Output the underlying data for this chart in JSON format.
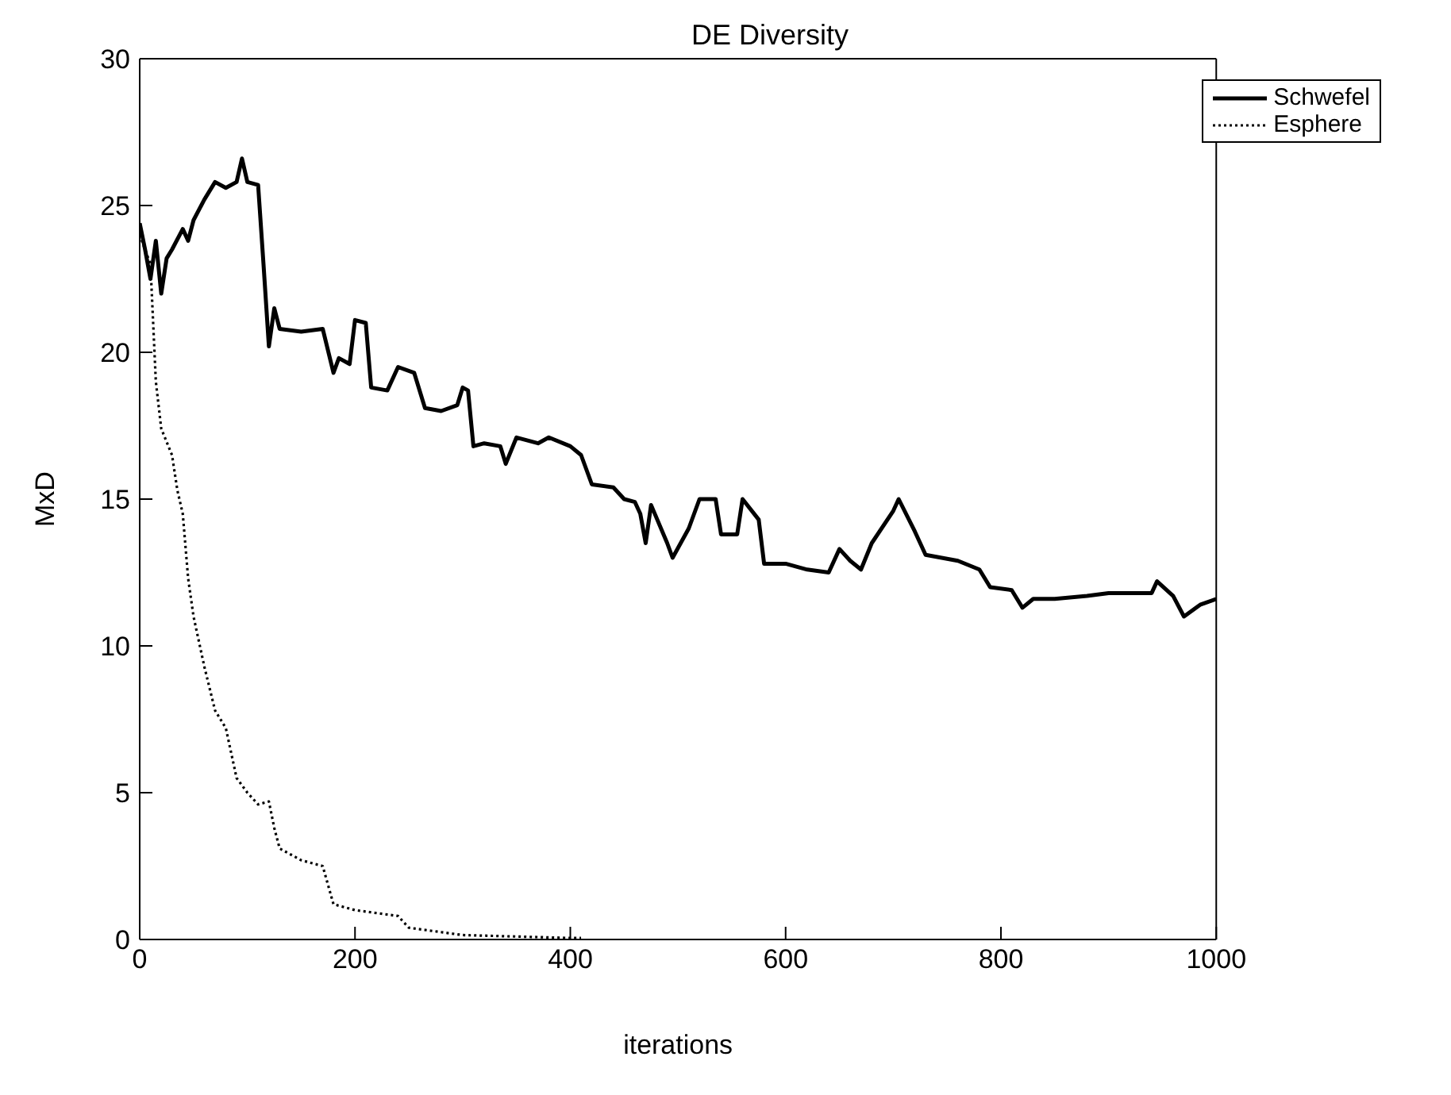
{
  "chart_data": {
    "type": "line",
    "title": "DE Diversity",
    "xlabel": "iterations",
    "ylabel": "MxD",
    "xlim": [
      0,
      1000
    ],
    "ylim": [
      0,
      30
    ],
    "xticks": [
      0,
      200,
      400,
      600,
      800,
      1000
    ],
    "yticks": [
      0,
      5,
      10,
      15,
      20,
      25,
      30
    ],
    "grid": false,
    "legend": "top right",
    "marker": "none",
    "series": [
      {
        "name": "Schwefel",
        "color": "#000000",
        "line_style": "solid",
        "x": [
          0,
          5,
          10,
          15,
          20,
          25,
          30,
          40,
          45,
          50,
          60,
          70,
          80,
          90,
          95,
          100,
          110,
          115,
          120,
          125,
          130,
          150,
          170,
          180,
          185,
          195,
          200,
          210,
          215,
          230,
          240,
          255,
          265,
          280,
          295,
          300,
          305,
          310,
          320,
          335,
          340,
          350,
          370,
          380,
          400,
          410,
          420,
          440,
          450,
          460,
          465,
          470,
          475,
          490,
          495,
          510,
          520,
          535,
          540,
          555,
          560,
          575,
          580,
          600,
          620,
          640,
          650,
          660,
          670,
          680,
          700,
          705,
          720,
          730,
          760,
          780,
          790,
          810,
          820,
          830,
          850,
          880,
          900,
          940,
          945,
          960,
          970,
          985,
          1000
        ],
        "values": [
          24.4,
          23.5,
          22.5,
          23.8,
          22.0,
          23.2,
          23.5,
          24.2,
          23.8,
          24.5,
          25.2,
          25.8,
          25.6,
          25.8,
          26.6,
          25.8,
          25.7,
          23,
          20.2,
          21.5,
          20.8,
          20.7,
          20.8,
          19.3,
          19.8,
          19.6,
          21.1,
          21,
          18.8,
          18.7,
          19.5,
          19.3,
          18.1,
          18,
          18.2,
          18.8,
          18.7,
          16.8,
          16.9,
          16.8,
          16.2,
          17.1,
          16.9,
          17.1,
          16.8,
          16.5,
          15.5,
          15.4,
          15.0,
          14.9,
          14.5,
          13.5,
          14.8,
          13.5,
          13.0,
          14,
          15.0,
          15.0,
          13.8,
          13.8,
          15.0,
          14.3,
          12.8,
          12.8,
          12.6,
          12.5,
          13.3,
          12.9,
          12.6,
          13.5,
          14.6,
          15.0,
          13.9,
          13.1,
          12.9,
          12.6,
          12.0,
          11.9,
          11.3,
          11.6,
          11.6,
          11.7,
          11.8,
          11.8,
          12.2,
          11.7,
          11.0,
          11.4,
          11.6
        ]
      },
      {
        "name": "Esphere",
        "color": "#000000",
        "line_style": "dotted",
        "x": [
          0,
          10,
          15,
          20,
          30,
          35,
          40,
          45,
          50,
          60,
          70,
          80,
          90,
          100,
          110,
          120,
          125,
          130,
          150,
          170,
          180,
          200,
          240,
          250,
          280,
          300,
          350,
          400,
          410
        ],
        "values": [
          24,
          23,
          19,
          17.4,
          16.5,
          15.3,
          14.5,
          12.3,
          11,
          9.3,
          7.8,
          7.2,
          5.5,
          5.0,
          4.6,
          4.7,
          3.8,
          3.1,
          2.7,
          2.5,
          1.2,
          1.0,
          0.8,
          0.4,
          0.25,
          0.15,
          0.1,
          0.05,
          0.05
        ]
      }
    ]
  }
}
